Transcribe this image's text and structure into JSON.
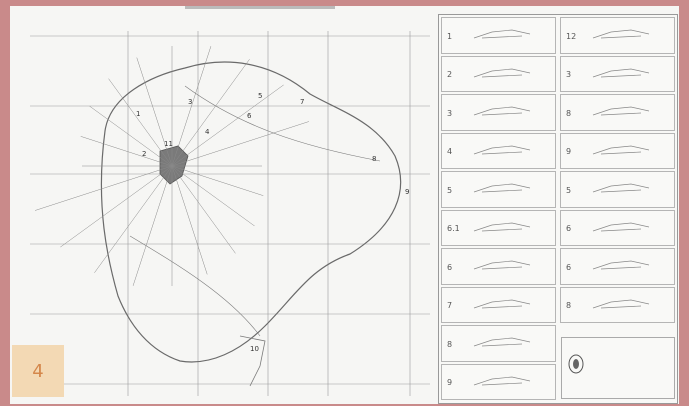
{
  "page_badge": "4",
  "colors": {
    "background": "#c98a8a",
    "sheet": "#f6f6f4",
    "badge_bg": "#f3d9b4",
    "badge_text": "#d4874a",
    "line": "#6a6a6a"
  },
  "detail_panels": [
    {
      "num": "1"
    },
    {
      "num": "12"
    },
    {
      "num": "2"
    },
    {
      "num": "3"
    },
    {
      "num": "3"
    },
    {
      "num": "8"
    },
    {
      "num": "4"
    },
    {
      "num": "9"
    },
    {
      "num": "5"
    },
    {
      "num": "5"
    },
    {
      "num": "6.1"
    },
    {
      "num": "6"
    },
    {
      "num": "6"
    },
    {
      "num": "6"
    },
    {
      "num": "7"
    },
    {
      "num": "8"
    },
    {
      "num": "8"
    },
    {
      "num": ""
    },
    {
      "num": "9"
    },
    {
      "num": ""
    }
  ],
  "map_labels": [
    "1",
    "2",
    "3",
    "4",
    "5",
    "6",
    "7",
    "8",
    "9",
    "10",
    "11"
  ]
}
